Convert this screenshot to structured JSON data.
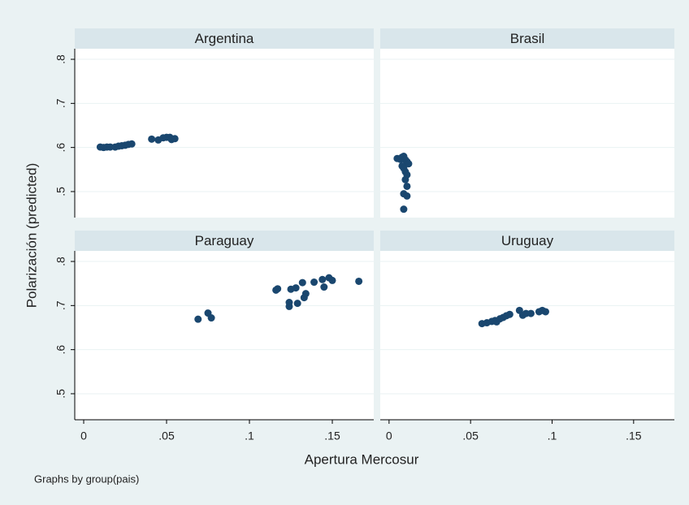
{
  "figure": {
    "ylabel": "Polarización (predicted)",
    "xlabel": "Apertura Mercosur",
    "note": "Graphs by group(pais)"
  },
  "chart_data": [
    {
      "type": "scatter",
      "title": "Argentina",
      "color": "#1a476f",
      "x": [
        0.01,
        0.012,
        0.014,
        0.016,
        0.019,
        0.021,
        0.023,
        0.025,
        0.027,
        0.029,
        0.041,
        0.045,
        0.048,
        0.05,
        0.052,
        0.053,
        0.055
      ],
      "values": [
        0.601,
        0.6,
        0.601,
        0.601,
        0.601,
        0.603,
        0.604,
        0.605,
        0.607,
        0.608,
        0.619,
        0.617,
        0.622,
        0.623,
        0.623,
        0.618,
        0.62
      ],
      "xlim": [
        -0.0054,
        0.175
      ],
      "ylim": [
        0.441,
        0.824
      ],
      "grid": true,
      "yticks": [
        {
          "value": 0.5,
          "label": ".5"
        },
        {
          "value": 0.6,
          "label": ".6"
        },
        {
          "value": 0.7,
          "label": ".7"
        },
        {
          "value": 0.8,
          "label": ".8"
        }
      ]
    },
    {
      "type": "scatter",
      "title": "Brasil",
      "color": "#1a476f",
      "x": [
        0.005,
        0.007,
        0.008,
        0.009,
        0.01,
        0.011,
        0.012,
        0.008,
        0.009,
        0.01,
        0.011,
        0.01,
        0.011,
        0.009,
        0.011,
        0.009
      ],
      "values": [
        0.575,
        0.573,
        0.578,
        0.58,
        0.572,
        0.568,
        0.563,
        0.558,
        0.553,
        0.545,
        0.538,
        0.527,
        0.512,
        0.495,
        0.49,
        0.46
      ],
      "xlim": [
        -0.0054,
        0.175
      ],
      "ylim": [
        0.441,
        0.824
      ],
      "grid": true
    },
    {
      "type": "scatter",
      "title": "Paraguay",
      "color": "#1a476f",
      "x": [
        0.069,
        0.075,
        0.077,
        0.116,
        0.117,
        0.124,
        0.124,
        0.125,
        0.128,
        0.129,
        0.132,
        0.133,
        0.134,
        0.139,
        0.144,
        0.145,
        0.148,
        0.15,
        0.166
      ],
      "values": [
        0.669,
        0.683,
        0.672,
        0.735,
        0.738,
        0.698,
        0.707,
        0.737,
        0.74,
        0.705,
        0.752,
        0.718,
        0.727,
        0.753,
        0.759,
        0.742,
        0.763,
        0.757,
        0.755
      ],
      "xlim": [
        -0.0054,
        0.175
      ],
      "ylim": [
        0.441,
        0.824
      ],
      "grid": true,
      "yticks": [
        {
          "value": 0.5,
          "label": ".5"
        },
        {
          "value": 0.6,
          "label": ".6"
        },
        {
          "value": 0.7,
          "label": ".7"
        },
        {
          "value": 0.8,
          "label": ".8"
        }
      ],
      "xticks": [
        0,
        {
          "value": 0.05,
          "label": ".05"
        },
        {
          "value": 0.1,
          "label": ".1"
        },
        {
          "value": 0.15,
          "label": ".15"
        }
      ]
    },
    {
      "type": "scatter",
      "title": "Uruguay",
      "color": "#1a476f",
      "x": [
        0.057,
        0.06,
        0.063,
        0.065,
        0.066,
        0.068,
        0.07,
        0.072,
        0.074,
        0.08,
        0.082,
        0.084,
        0.087,
        0.092,
        0.094,
        0.096
      ],
      "values": [
        0.659,
        0.661,
        0.664,
        0.666,
        0.663,
        0.67,
        0.673,
        0.677,
        0.68,
        0.689,
        0.678,
        0.682,
        0.682,
        0.686,
        0.689,
        0.686
      ],
      "xlim": [
        -0.0054,
        0.175
      ],
      "ylim": [
        0.441,
        0.824
      ],
      "grid": true,
      "xticks": [
        0,
        {
          "value": 0.05,
          "label": ".05"
        },
        {
          "value": 0.1,
          "label": ".1"
        },
        {
          "value": 0.15,
          "label": ".15"
        }
      ]
    }
  ]
}
